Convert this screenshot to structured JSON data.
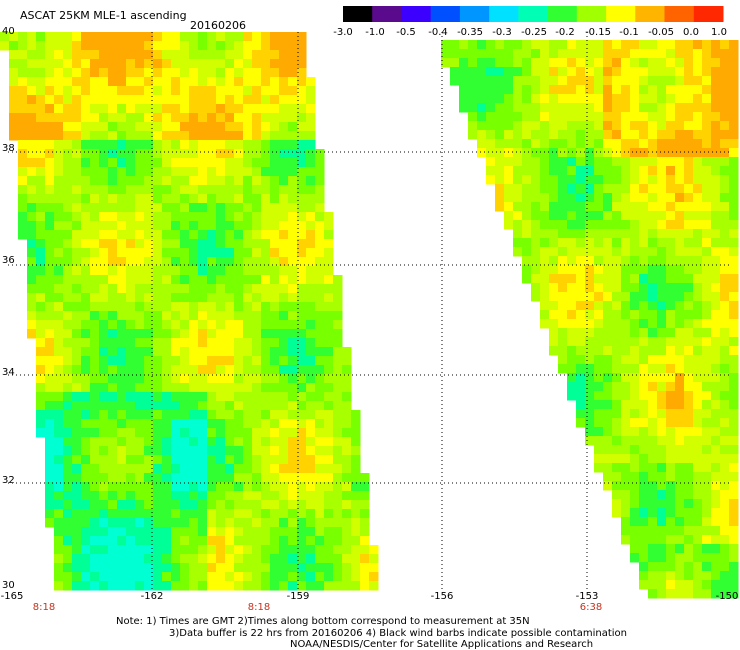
{
  "header": {
    "title": "ASCAT 25KM MLE-1 ascending",
    "date": "20160206"
  },
  "colorbar": {
    "labels": [
      "-3.0",
      "-1.0",
      "-0.5",
      "-0.4",
      "-0.35",
      "-0.3",
      "-0.25",
      "-0.2",
      "-0.15",
      "-0.1",
      "-0.05",
      "0.0",
      "1.0"
    ],
    "colors": [
      "#000000",
      "#5a0a8c",
      "#3c00ff",
      "#0050ff",
      "#0096ff",
      "#00e1ff",
      "#00ffb4",
      "#32ff32",
      "#a0ff00",
      "#ffff00",
      "#ffb400",
      "#ff6400",
      "#ff2800"
    ]
  },
  "map": {
    "lat_labels": [
      "40",
      "38",
      "36",
      "34",
      "32",
      "30"
    ],
    "lon_labels": [
      "-165",
      "-162",
      "-159",
      "-156",
      "-153",
      "-150"
    ],
    "time_labels": [
      "8:18",
      "8:18",
      "6:38"
    ]
  },
  "notes": {
    "line1": "Note: 1) Times are GMT 2)Times along bottom correspond to measurement at 35N",
    "line2": "3)Data buffer is 22 hrs from 20160206 4) Black wind barbs indicate possible contamination",
    "line3": "NOAA/NESDIS/Center for Satellite Applications and Research"
  }
}
